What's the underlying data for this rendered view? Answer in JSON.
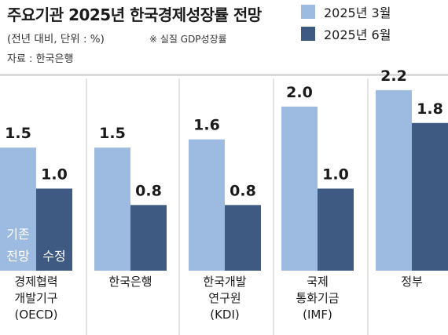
{
  "chart_data": {
    "type": "bar",
    "title": "주요기관 2025년 한국경제성장률 전망",
    "subtitle": "(전년 대비, 단위 : %)",
    "note": "※ 실질 GDP성장률",
    "source": "자료 : 한국은행",
    "categories": [
      [
        "경제협력",
        "개발기구",
        "(OECD)"
      ],
      [
        "한국은행"
      ],
      [
        "한국개발",
        "연구원",
        "(KDI)"
      ],
      [
        "국제",
        "통화기금",
        "(IMF)"
      ],
      [
        "정부"
      ]
    ],
    "series": [
      {
        "name": "2025년 3월",
        "values": [
          1.5,
          1.5,
          1.6,
          2.0,
          2.2
        ],
        "color": "#9dbbe0"
      },
      {
        "name": "2025년 6월",
        "values": [
          1.0,
          0.8,
          0.8,
          1.0,
          1.8
        ],
        "color": "#3e5a82"
      }
    ],
    "value_labels": [
      [
        "1.5",
        "1.5",
        "1.6",
        "2.0",
        "2.2"
      ],
      [
        "1.0",
        "0.8",
        "0.8",
        "1.0",
        "1.8"
      ]
    ],
    "annotations": [
      "기존 전망",
      "수정"
    ],
    "ylim": [
      0,
      2.4
    ],
    "grid": false,
    "legend_position": "top-right"
  }
}
